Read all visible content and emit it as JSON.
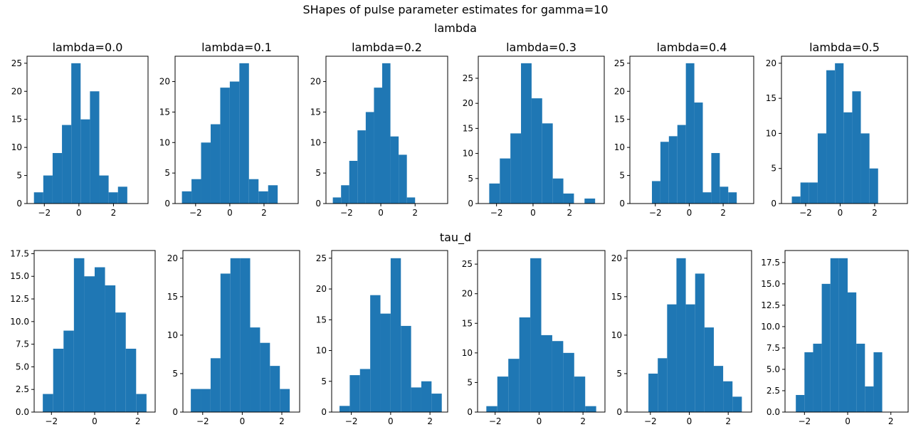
{
  "figure": {
    "suptitle": "SHapes of pulse parameter estimates for gamma=10",
    "row_titles": [
      "lambda",
      "tau_d"
    ],
    "bar_color": "#1f77b4"
  },
  "chart_data": [
    {
      "type": "bar",
      "row": 0,
      "col": 0,
      "title": "lambda=0.0",
      "xlim": [
        -3.0,
        4.0
      ],
      "ylim": [
        0,
        26.25
      ],
      "xticks": [
        -2,
        0,
        2
      ],
      "yticks": [
        0,
        5,
        10,
        15,
        20,
        25
      ],
      "edges": [
        -2.6,
        -2.06,
        -1.52,
        -0.98,
        -0.44,
        0.1,
        0.64,
        1.18,
        1.72,
        2.26,
        2.8
      ],
      "values": [
        2,
        5,
        9,
        14,
        25,
        15,
        20,
        5,
        2,
        3
      ]
    },
    {
      "type": "bar",
      "row": 0,
      "col": 1,
      "title": "lambda=0.1",
      "xlim": [
        -3.2,
        4.0
      ],
      "ylim": [
        0,
        24.15
      ],
      "xticks": [
        -2,
        0,
        2
      ],
      "yticks": [
        0,
        5,
        10,
        15,
        20
      ],
      "edges": [
        -2.8,
        -2.24,
        -1.68,
        -1.12,
        -0.56,
        0.0,
        0.56,
        1.12,
        1.68,
        2.24,
        2.8
      ],
      "values": [
        2,
        4,
        10,
        13,
        19,
        20,
        23,
        4,
        2,
        3
      ]
    },
    {
      "type": "bar",
      "row": 0,
      "col": 2,
      "title": "lambda=0.2",
      "xlim": [
        -3.2,
        3.9
      ],
      "ylim": [
        0,
        24.15
      ],
      "xticks": [
        -2,
        0,
        2
      ],
      "yticks": [
        0,
        5,
        10,
        15,
        20
      ],
      "edges": [
        -2.8,
        -2.32,
        -1.84,
        -1.36,
        -0.88,
        -0.4,
        0.08,
        0.56,
        1.04,
        1.52,
        2.0
      ],
      "values": [
        1,
        3,
        7,
        12,
        15,
        19,
        23,
        11,
        8,
        1
      ]
    },
    {
      "type": "bar",
      "row": 0,
      "col": 3,
      "title": "lambda=0.3",
      "xlim": [
        -3.0,
        3.9
      ],
      "ylim": [
        0,
        29.4
      ],
      "xticks": [
        -2,
        0,
        2
      ],
      "yticks": [
        0,
        5,
        10,
        15,
        20,
        25
      ],
      "edges": [
        -2.4,
        -1.82,
        -1.24,
        -0.66,
        -0.08,
        0.5,
        1.08,
        1.66,
        2.24,
        2.82,
        3.4
      ],
      "values": [
        4,
        9,
        14,
        28,
        21,
        16,
        5,
        2,
        0,
        1
      ]
    },
    {
      "type": "bar",
      "row": 0,
      "col": 4,
      "title": "lambda=0.4",
      "xlim": [
        -3.5,
        3.8
      ],
      "ylim": [
        0,
        26.25
      ],
      "xticks": [
        -2,
        0,
        2
      ],
      "yticks": [
        0,
        5,
        10,
        15,
        20,
        25
      ],
      "edges": [
        -2.2,
        -1.7,
        -1.2,
        -0.7,
        -0.2,
        0.3,
        0.8,
        1.3,
        1.8,
        2.3,
        2.8
      ],
      "values": [
        4,
        11,
        12,
        14,
        25,
        18,
        2,
        9,
        3,
        2
      ]
    },
    {
      "type": "bar",
      "row": 0,
      "col": 5,
      "title": "lambda=0.5",
      "xlim": [
        -3.4,
        3.9
      ],
      "ylim": [
        0,
        21.0
      ],
      "xticks": [
        -2,
        0,
        2
      ],
      "yticks": [
        0,
        5,
        10,
        15,
        20
      ],
      "edges": [
        -2.8,
        -2.3,
        -1.8,
        -1.3,
        -0.8,
        -0.3,
        0.2,
        0.7,
        1.2,
        1.7,
        2.2
      ],
      "values": [
        1,
        3,
        3,
        10,
        19,
        20,
        13,
        16,
        10,
        5
      ]
    },
    {
      "type": "bar",
      "row": 1,
      "col": 0,
      "title": "",
      "xlim": [
        -2.8,
        2.8
      ],
      "ylim": [
        0,
        17.85
      ],
      "xticks": [
        -2,
        0,
        2
      ],
      "yticks": [
        0,
        2.5,
        5.0,
        7.5,
        10.0,
        12.5,
        15.0,
        17.5
      ],
      "edges": [
        -2.4,
        -1.92,
        -1.44,
        -0.96,
        -0.48,
        0.0,
        0.48,
        0.96,
        1.44,
        1.92,
        2.4
      ],
      "values": [
        2,
        7,
        9,
        17,
        15,
        16,
        14,
        11,
        7,
        2
      ]
    },
    {
      "type": "bar",
      "row": 1,
      "col": 1,
      "title": "",
      "xlim": [
        -3.0,
        2.9
      ],
      "ylim": [
        0,
        21.0
      ],
      "xticks": [
        -2,
        0,
        2
      ],
      "yticks": [
        0,
        5,
        10,
        15,
        20
      ],
      "edges": [
        -2.6,
        -2.1,
        -1.6,
        -1.1,
        -0.6,
        -0.1,
        0.4,
        0.9,
        1.4,
        1.9,
        2.4
      ],
      "values": [
        3,
        3,
        7,
        18,
        20,
        20,
        11,
        9,
        6,
        3
      ]
    },
    {
      "type": "bar",
      "row": 1,
      "col": 2,
      "title": "",
      "xlim": [
        -3.0,
        2.9
      ],
      "ylim": [
        0,
        26.25
      ],
      "xticks": [
        -2,
        0,
        2
      ],
      "yticks": [
        0,
        5,
        10,
        15,
        20,
        25
      ],
      "edges": [
        -2.6,
        -2.08,
        -1.56,
        -1.04,
        -0.52,
        0.0,
        0.52,
        1.04,
        1.56,
        2.08,
        2.6
      ],
      "values": [
        1,
        6,
        7,
        19,
        16,
        25,
        14,
        4,
        5,
        3
      ]
    },
    {
      "type": "bar",
      "row": 1,
      "col": 3,
      "title": "",
      "xlim": [
        -2.8,
        3.0
      ],
      "ylim": [
        0,
        27.3
      ],
      "xticks": [
        -2,
        0,
        2
      ],
      "yticks": [
        0,
        5,
        10,
        15,
        20,
        25
      ],
      "edges": [
        -2.4,
        -1.9,
        -1.4,
        -0.9,
        -0.4,
        0.1,
        0.6,
        1.1,
        1.6,
        2.1,
        2.6
      ],
      "values": [
        1,
        6,
        9,
        16,
        26,
        13,
        12,
        10,
        6,
        1
      ]
    },
    {
      "type": "bar",
      "row": 1,
      "col": 4,
      "title": "",
      "xlim": [
        -3.2,
        3.2
      ],
      "ylim": [
        0,
        21.0
      ],
      "xticks": [
        -2,
        0,
        2
      ],
      "yticks": [
        0,
        5,
        10,
        15,
        20
      ],
      "edges": [
        -2.1,
        -1.62,
        -1.14,
        -0.66,
        -0.18,
        0.3,
        0.78,
        1.26,
        1.74,
        2.22,
        2.7
      ],
      "values": [
        5,
        7,
        14,
        20,
        14,
        18,
        11,
        6,
        4,
        2
      ]
    },
    {
      "type": "bar",
      "row": 1,
      "col": 5,
      "title": "",
      "xlim": [
        -2.9,
        2.8
      ],
      "ylim": [
        0,
        18.9
      ],
      "xticks": [
        -2,
        0,
        2
      ],
      "yticks": [
        0,
        2.5,
        5.0,
        7.5,
        10.0,
        12.5,
        15.0,
        17.5
      ],
      "edges": [
        -2.4,
        -2.0,
        -1.6,
        -1.2,
        -0.8,
        -0.4,
        0.0,
        0.4,
        0.8,
        1.2,
        1.6,
        2.0
      ],
      "values": [
        2,
        7,
        8,
        15,
        18,
        18,
        14,
        8,
        3,
        7,
        0
      ]
    }
  ]
}
